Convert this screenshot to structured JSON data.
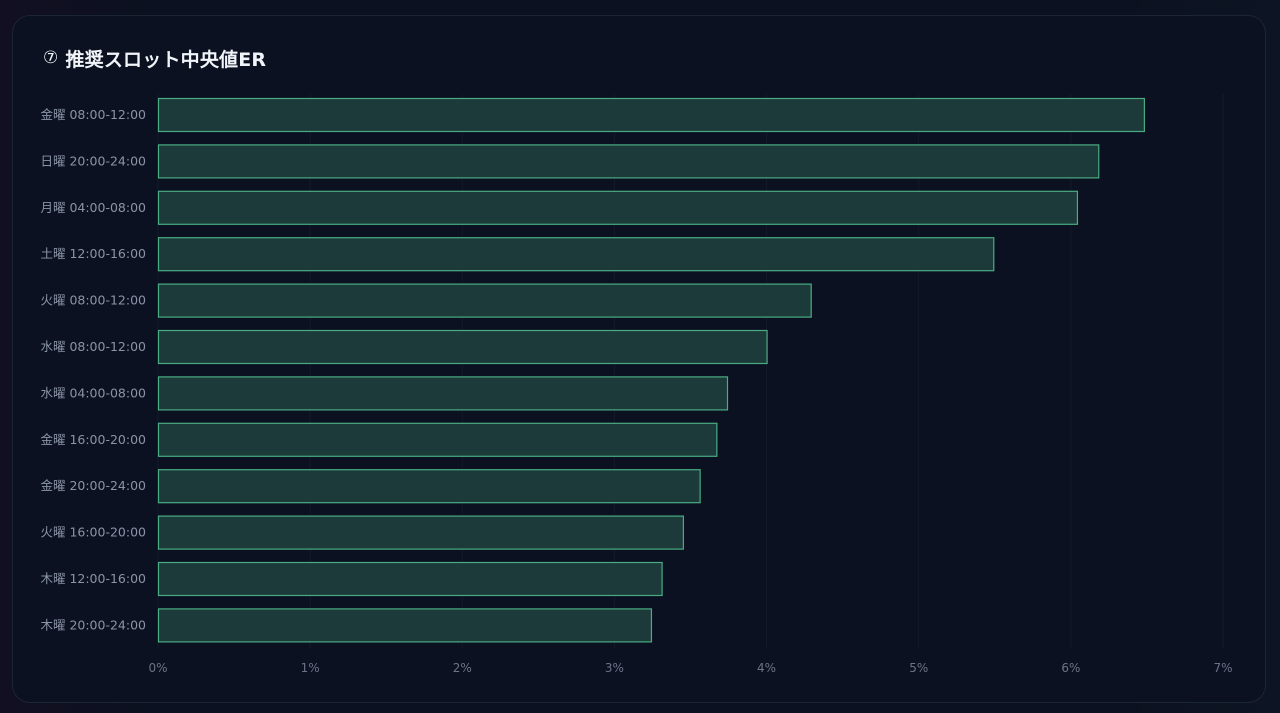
{
  "header": {
    "icon": "⑦",
    "title": "推奨スロット中央値ER"
  },
  "colors": {
    "card_background": "#0b1120",
    "bar_fill": "#1d3a3a",
    "bar_stroke": "#49ac82",
    "label_text": "#8a94a6",
    "title_text": "#f1f5f9"
  },
  "chart_data": {
    "type": "bar",
    "orientation": "horizontal",
    "title": "推奨スロット中央値ER",
    "xlabel": "",
    "ylabel": "",
    "categories": [
      "金曜 08:00-12:00",
      "日曜 20:00-24:00",
      "月曜 04:00-08:00",
      "土曜 12:00-16:00",
      "火曜 08:00-12:00",
      "水曜 08:00-12:00",
      "水曜 04:00-08:00",
      "金曜 16:00-20:00",
      "金曜 20:00-24:00",
      "火曜 16:00-20:00",
      "木曜 12:00-16:00",
      "木曜 20:00-24:00"
    ],
    "values": [
      6.48,
      6.18,
      6.04,
      5.49,
      4.29,
      4.0,
      3.74,
      3.67,
      3.56,
      3.45,
      3.31,
      3.24
    ],
    "value_unit": "%",
    "xlim": [
      0,
      7
    ],
    "x_ticks": [
      "0%",
      "1%",
      "2%",
      "3%",
      "4%",
      "5%",
      "6%",
      "7%"
    ],
    "grid": true,
    "legend": "none"
  }
}
